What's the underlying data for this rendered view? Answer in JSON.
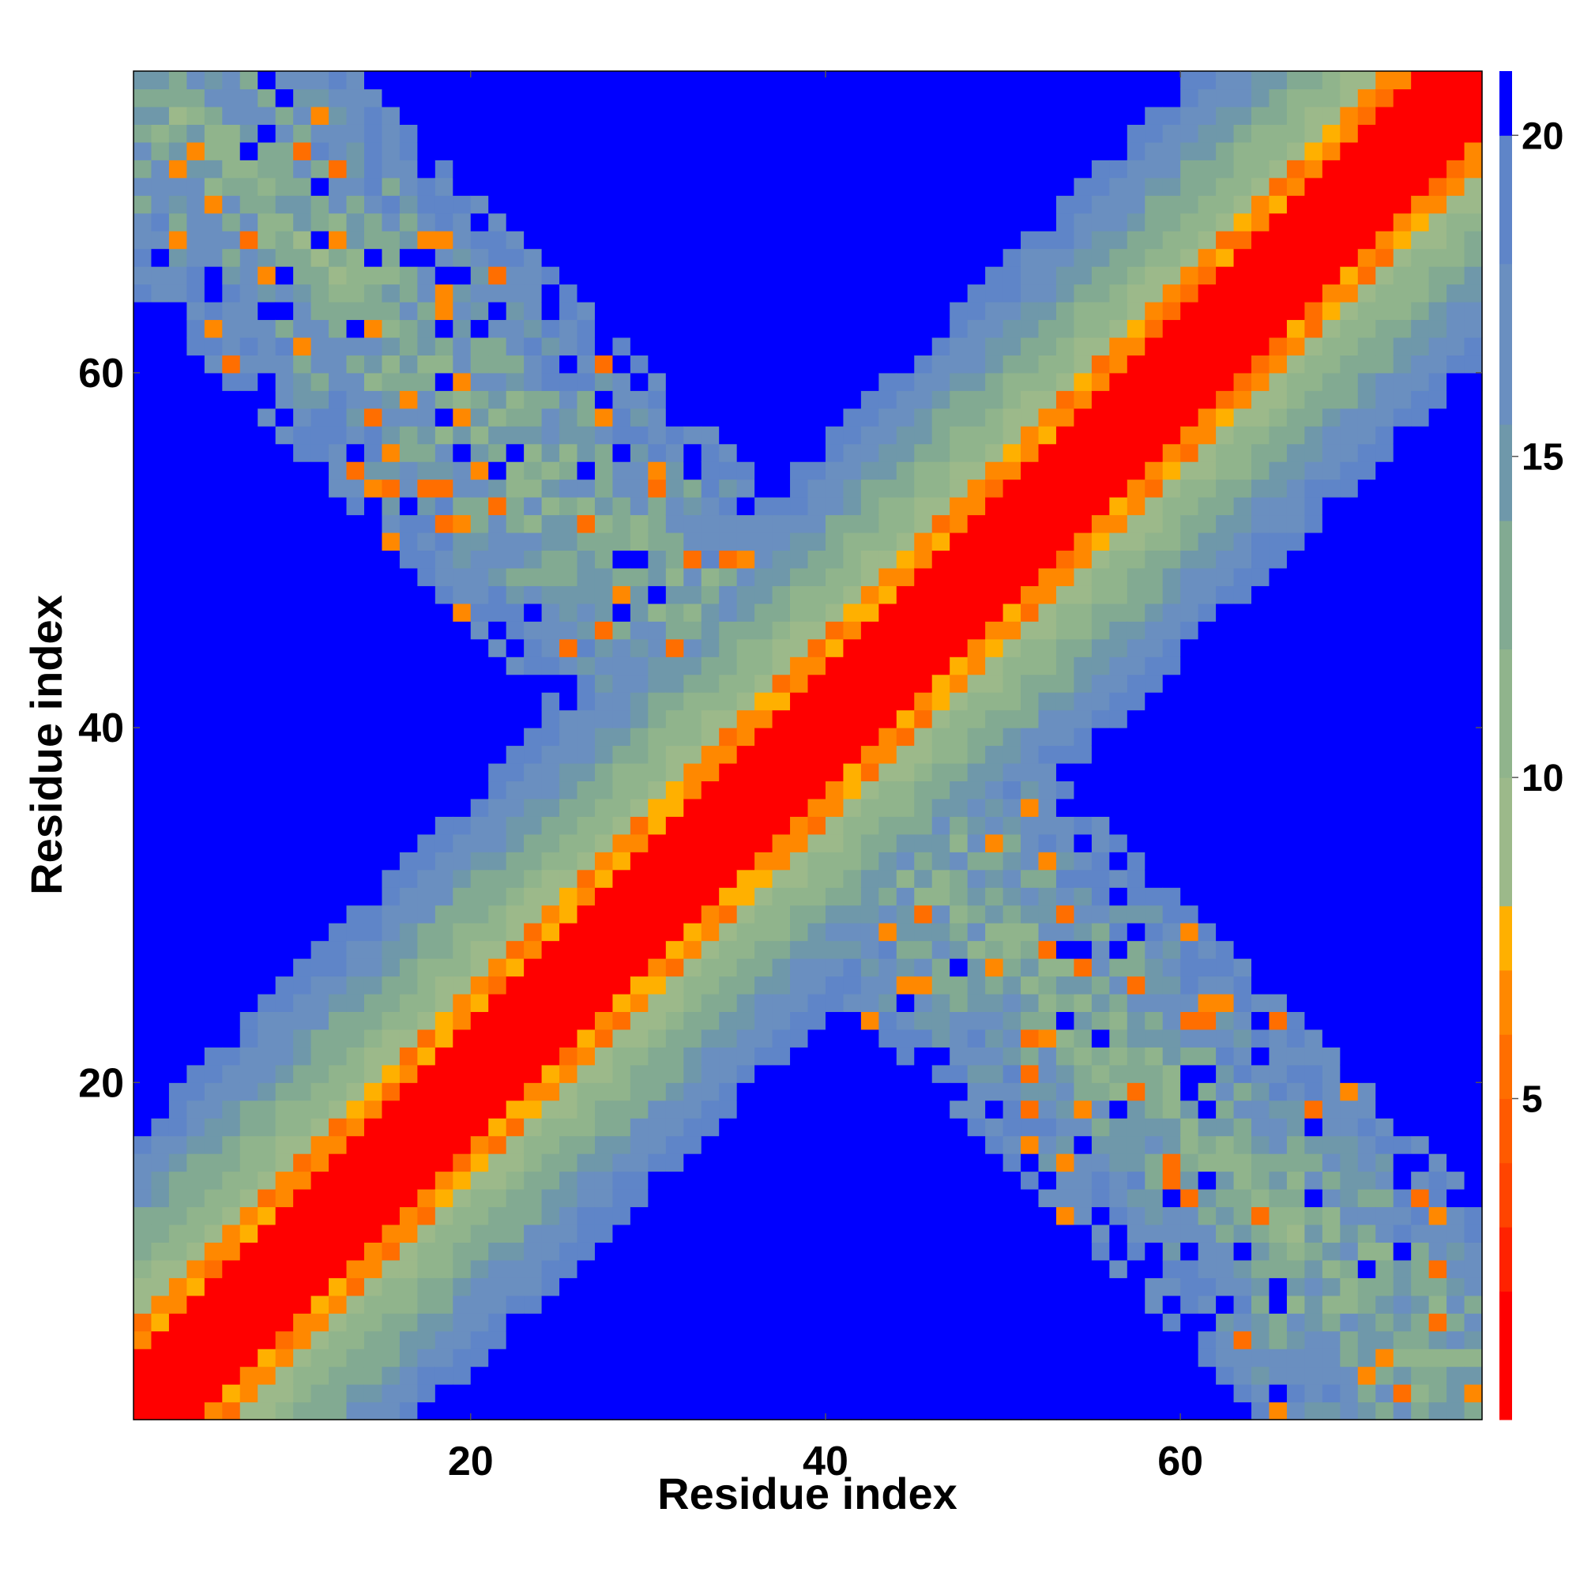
{
  "chart_data": {
    "type": "heatmap",
    "title": "",
    "xlabel": "Residue index",
    "ylabel": "Residue index",
    "n_residues": 76,
    "xlim": [
      1,
      77
    ],
    "ylim": [
      1,
      77
    ],
    "x_ticks": [
      20,
      40,
      60
    ],
    "y_ticks": [
      20,
      40,
      60
    ],
    "colorbar": {
      "range": [
        0,
        21
      ],
      "ticks": [
        5,
        10,
        15,
        20
      ],
      "bands": [
        {
          "upto": 2,
          "color": "#ff0000"
        },
        {
          "upto": 3,
          "color": "#ff2200"
        },
        {
          "upto": 4,
          "color": "#ff4400"
        },
        {
          "upto": 5,
          "color": "#ff5a00"
        },
        {
          "upto": 6,
          "color": "#ff6e00"
        },
        {
          "upto": 7,
          "color": "#ff8800"
        },
        {
          "upto": 8,
          "color": "#ffb000"
        },
        {
          "upto": 10,
          "color": "#9cb98a"
        },
        {
          "upto": 12,
          "color": "#90b48c"
        },
        {
          "upto": 14,
          "color": "#82aa92"
        },
        {
          "upto": 15.5,
          "color": "#6f98aa"
        },
        {
          "upto": 18,
          "color": "#6a8fc0"
        },
        {
          "upto": 20,
          "color": "#5f85c8"
        },
        {
          "upto": 21,
          "color": "#0000ff"
        }
      ]
    },
    "description_of_values": "Pairwise residue distance matrix (symmetric). Diagonal near 0 (red), rising with |i-j| along the main diagonal band; an anti-diagonal band of contacts spans from (1,76) to (76,1); all other pairs exceed 20 (blue)."
  }
}
